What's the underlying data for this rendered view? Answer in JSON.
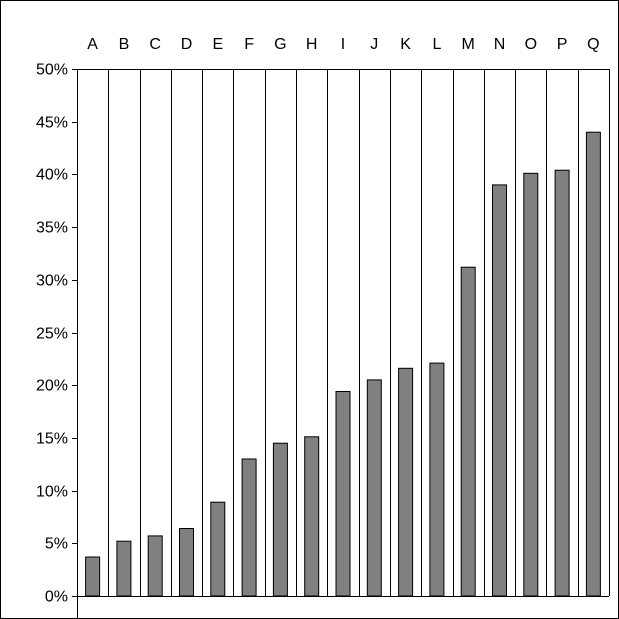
{
  "chart_data": {
    "type": "bar",
    "title": "",
    "xlabel": "",
    "ylabel": "",
    "categories": [
      "A",
      "B",
      "C",
      "D",
      "E",
      "F",
      "G",
      "H",
      "I",
      "J",
      "K",
      "L",
      "M",
      "N",
      "O",
      "P",
      "Q"
    ],
    "values": [
      3.7,
      5.2,
      5.7,
      6.4,
      8.9,
      13.0,
      14.5,
      15.1,
      19.4,
      20.5,
      21.6,
      22.1,
      31.2,
      39.0,
      40.1,
      40.4,
      44.0
    ],
    "ylim": [
      0,
      50
    ],
    "yticks": [
      0,
      5,
      10,
      15,
      20,
      25,
      30,
      35,
      40,
      45,
      50
    ],
    "ytick_labels": [
      "0%",
      "5%",
      "10%",
      "15%",
      "20%",
      "25%",
      "30%",
      "35%",
      "40%",
      "45%",
      "50%"
    ],
    "category_axis_position": "top",
    "grid": "vertical separators between categories",
    "legend": "none",
    "colors": {
      "bar_fill": "#808080",
      "bar_stroke": "#000000",
      "grid": "#000000"
    }
  }
}
